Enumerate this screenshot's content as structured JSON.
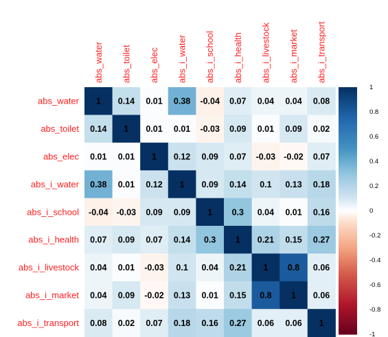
{
  "chart_data": {
    "type": "heatmap",
    "variables": [
      "abs_water",
      "abs_toilet",
      "abs_elec",
      "abs_i_water",
      "abs_i_school",
      "abs_i_health",
      "abs_i_livestock",
      "abs_i_market",
      "abs_i_transport"
    ],
    "matrix": [
      [
        1,
        0.14,
        0.01,
        0.38,
        -0.04,
        0.07,
        0.04,
        0.04,
        0.08
      ],
      [
        0.14,
        1,
        0.01,
        0.01,
        -0.03,
        0.09,
        0.01,
        0.09,
        0.02
      ],
      [
        0.01,
        0.01,
        1,
        0.12,
        0.09,
        0.07,
        -0.03,
        -0.02,
        0.07
      ],
      [
        0.38,
        0.01,
        0.12,
        1,
        0.09,
        0.14,
        0.1,
        0.13,
        0.18
      ],
      [
        -0.04,
        -0.03,
        0.09,
        0.09,
        1,
        0.3,
        0.04,
        0.01,
        0.16
      ],
      [
        0.07,
        0.09,
        0.07,
        0.14,
        0.3,
        1,
        0.21,
        0.15,
        0.27
      ],
      [
        0.04,
        0.01,
        -0.03,
        0.1,
        0.04,
        0.21,
        1,
        0.8,
        0.06
      ],
      [
        0.04,
        0.09,
        -0.02,
        0.13,
        0.01,
        0.15,
        0.8,
        1,
        0.06
      ],
      [
        0.08,
        0.02,
        0.07,
        0.18,
        0.16,
        0.27,
        0.06,
        0.06,
        1
      ]
    ],
    "colorbar": {
      "range": [
        -1,
        1
      ],
      "ticks": [
        "1",
        "0.8",
        "0.6",
        "0.4",
        "0.2",
        "0",
        "-0.2",
        "-0.4",
        "-0.6",
        "-0.8",
        "-1"
      ]
    },
    "colors": {
      "negative_end": "#67001f",
      "neutral": "#ffffff",
      "positive_end": "#053061",
      "label_color": "#ff2020"
    }
  }
}
